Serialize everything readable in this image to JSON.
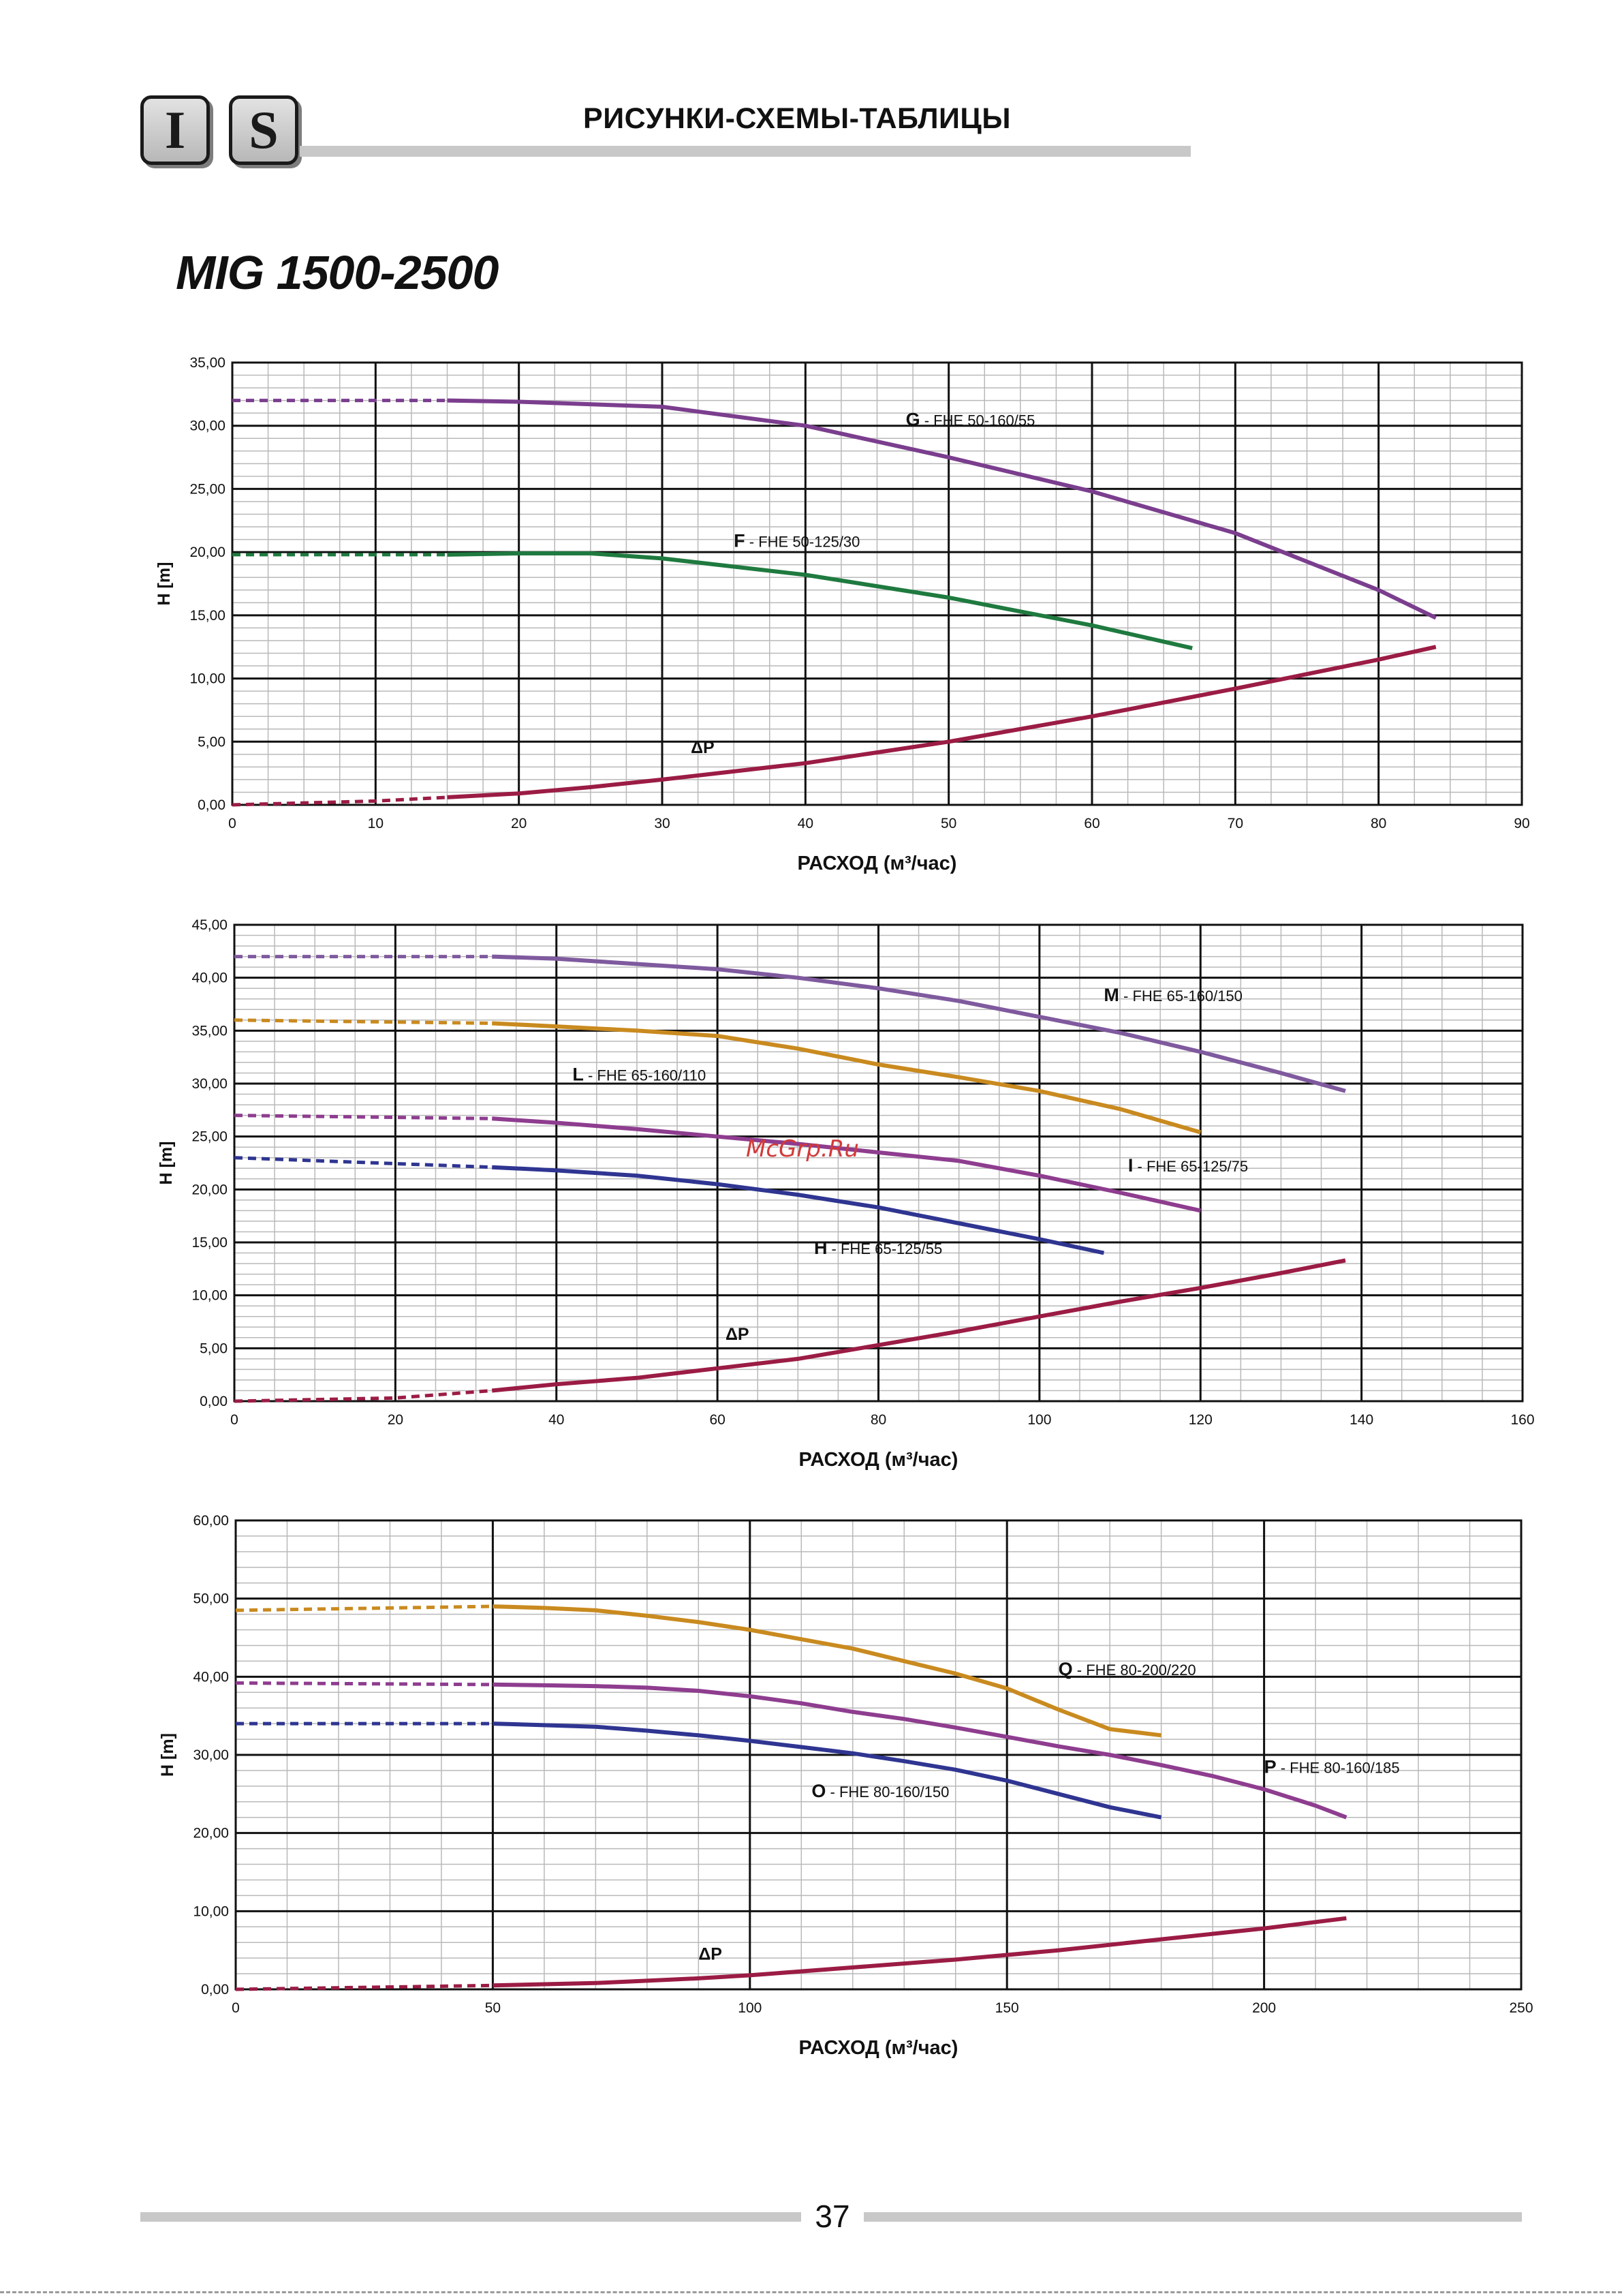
{
  "header": {
    "logo_left": "I",
    "logo_right": "S",
    "title": "РИСУНКИ-СХЕМЫ-ТАБЛИЦЫ"
  },
  "page_title": "MIG 1500-2500",
  "watermark": "McGrp.Ru",
  "footer": {
    "page_number": "37"
  },
  "colors": {
    "G": "#7b3e8e",
    "F": "#1f7a3f",
    "dP": "#9b1c44",
    "M": "#7f5a9e",
    "L": "#c98a1f",
    "I": "#8e3d8f",
    "H": "#2f3591",
    "Q": "#c98a1f",
    "P": "#8e3d8f",
    "O": "#2f3591"
  },
  "chart_data": [
    {
      "type": "line",
      "xlabel": "РАСХОД (м³/час)",
      "ylabel": "H [m]",
      "xlim": [
        0,
        90
      ],
      "ylim": [
        0,
        35
      ],
      "xticks": [
        "0",
        "10",
        "20",
        "30",
        "40",
        "50",
        "60",
        "70",
        "80",
        "90"
      ],
      "yticks": [
        "0,00",
        "5,00",
        "10,00",
        "15,00",
        "20,00",
        "25,00",
        "30,00",
        "35,00"
      ],
      "grid": true,
      "series": [
        {
          "id": "G",
          "name": "FHE 50-160/55",
          "color_key": "G",
          "dashed_until": 15,
          "x": [
            0,
            15,
            20,
            30,
            40,
            50,
            60,
            70,
            80,
            84
          ],
          "y": [
            32,
            32,
            31.9,
            31.5,
            30,
            27.5,
            24.8,
            21.5,
            17,
            14.8
          ],
          "label_pos": [
            47,
            30
          ]
        },
        {
          "id": "F",
          "name": "FHE 50-125/30",
          "color_key": "F",
          "dashed_until": 15,
          "x": [
            0,
            15,
            20,
            25,
            30,
            40,
            50,
            60,
            67
          ],
          "y": [
            19.8,
            19.8,
            19.9,
            19.9,
            19.5,
            18.2,
            16.4,
            14.2,
            12.4
          ],
          "label_pos": [
            35,
            20.4
          ]
        },
        {
          "id": "dP",
          "name": "ΔP",
          "color_key": "dP",
          "dashed_until": 15,
          "x": [
            0,
            10,
            15,
            20,
            25,
            30,
            40,
            50,
            60,
            70,
            80,
            84
          ],
          "y": [
            0,
            0.3,
            0.6,
            0.9,
            1.4,
            2,
            3.3,
            5,
            7,
            9.2,
            11.5,
            12.5
          ],
          "label_pos": [
            32,
            4.1
          ]
        }
      ]
    },
    {
      "type": "line",
      "xlabel": "РАСХОД (м³/час)",
      "ylabel": "H [m]",
      "xlim": [
        0,
        160
      ],
      "ylim": [
        0,
        45
      ],
      "xticks": [
        "0",
        "20",
        "40",
        "60",
        "80",
        "100",
        "120",
        "140",
        "160"
      ],
      "yticks": [
        "0,00",
        "5,00",
        "10,00",
        "15,00",
        "20,00",
        "25,00",
        "30,00",
        "35,00",
        "40,00",
        "45,00"
      ],
      "grid": true,
      "series": [
        {
          "id": "M",
          "name": "FHE 65-160/150",
          "color_key": "M",
          "dashed_until": 32,
          "x": [
            0,
            32,
            40,
            50,
            60,
            70,
            80,
            90,
            100,
            110,
            120,
            130,
            138
          ],
          "y": [
            42,
            42,
            41.8,
            41.3,
            40.8,
            40,
            39,
            37.8,
            36.3,
            34.8,
            33,
            31,
            29.3
          ],
          "label_pos": [
            108,
            37.8
          ]
        },
        {
          "id": "L",
          "name": "FHE 65-160/110",
          "color_key": "L",
          "dashed_until": 32,
          "x": [
            0,
            32,
            40,
            50,
            60,
            70,
            80,
            90,
            100,
            110,
            120
          ],
          "y": [
            36,
            35.7,
            35.4,
            35,
            34.5,
            33.3,
            31.8,
            30.6,
            29.3,
            27.6,
            25.4
          ],
          "label_pos": [
            42,
            30.3
          ]
        },
        {
          "id": "I",
          "name": "FHE 65-125/75",
          "color_key": "I",
          "dashed_until": 32,
          "x": [
            0,
            32,
            40,
            50,
            60,
            70,
            80,
            90,
            100,
            110,
            120
          ],
          "y": [
            27,
            26.7,
            26.3,
            25.7,
            25,
            24.3,
            23.5,
            22.7,
            21.3,
            19.7,
            18
          ],
          "label_pos": [
            111,
            21.7
          ]
        },
        {
          "id": "H",
          "name": "FHE 65-125/55",
          "color_key": "H",
          "dashed_until": 32,
          "x": [
            0,
            32,
            40,
            50,
            60,
            70,
            80,
            90,
            100,
            108
          ],
          "y": [
            23,
            22.1,
            21.8,
            21.3,
            20.5,
            19.5,
            18.3,
            16.8,
            15.3,
            14
          ],
          "label_pos": [
            72,
            13.9
          ]
        },
        {
          "id": "dP",
          "name": "ΔP",
          "color_key": "dP",
          "dashed_until": 32,
          "x": [
            0,
            20,
            32,
            40,
            50,
            60,
            70,
            80,
            90,
            100,
            110,
            120,
            130,
            138
          ],
          "y": [
            0,
            0.3,
            1,
            1.6,
            2.2,
            3.1,
            4,
            5.3,
            6.6,
            8,
            9.4,
            10.7,
            12.1,
            13.3
          ],
          "label_pos": [
            61,
            5.8
          ]
        }
      ]
    },
    {
      "type": "line",
      "xlabel": "РАСХОД (м³/час)",
      "ylabel": "H [m]",
      "xlim": [
        0,
        250
      ],
      "ylim": [
        0,
        60
      ],
      "xticks": [
        "0",
        "50",
        "100",
        "150",
        "200",
        "250"
      ],
      "yticks": [
        "0,00",
        "10,00",
        "20,00",
        "30,00",
        "40,00",
        "50,00",
        "60,00"
      ],
      "grid": true,
      "series": [
        {
          "id": "Q",
          "name": "FHE 80-200/220",
          "color_key": "Q",
          "dashed_until": 50,
          "x": [
            0,
            50,
            60,
            70,
            80,
            90,
            100,
            110,
            120,
            130,
            140,
            150,
            160,
            170,
            180
          ],
          "y": [
            48.5,
            49,
            48.8,
            48.5,
            47.8,
            47,
            46,
            44.8,
            43.6,
            42,
            40.4,
            38.5,
            35.8,
            33.3,
            32.5
          ],
          "label_pos": [
            160,
            40.2
          ]
        },
        {
          "id": "P",
          "name": "FHE 80-160/185",
          "color_key": "P",
          "dashed_until": 50,
          "x": [
            0,
            50,
            60,
            70,
            80,
            90,
            100,
            110,
            120,
            130,
            140,
            150,
            160,
            170,
            180,
            190,
            200,
            210,
            216
          ],
          "y": [
            39.2,
            39,
            38.9,
            38.8,
            38.6,
            38.2,
            37.5,
            36.6,
            35.5,
            34.6,
            33.5,
            32.3,
            31.1,
            30,
            28.7,
            27.3,
            25.6,
            23.5,
            22
          ],
          "label_pos": [
            200,
            27.7
          ]
        },
        {
          "id": "O",
          "name": "FHE 80-160/150",
          "color_key": "O",
          "dashed_until": 50,
          "x": [
            0,
            50,
            60,
            70,
            80,
            90,
            100,
            110,
            120,
            130,
            140,
            150,
            160,
            170,
            180
          ],
          "y": [
            34,
            34,
            33.8,
            33.6,
            33.1,
            32.5,
            31.8,
            31,
            30.2,
            29.2,
            28.1,
            26.7,
            25,
            23.3,
            22
          ],
          "label_pos": [
            112,
            24.6
          ]
        },
        {
          "id": "dP",
          "name": "ΔP",
          "color_key": "dP",
          "dashed_until": 50,
          "x": [
            0,
            50,
            70,
            80,
            90,
            100,
            120,
            140,
            160,
            180,
            200,
            216
          ],
          "y": [
            0,
            0.5,
            0.8,
            1.1,
            1.4,
            1.8,
            2.8,
            3.8,
            5,
            6.4,
            7.8,
            9.1
          ],
          "label_pos": [
            90,
            3.8
          ]
        }
      ]
    }
  ]
}
